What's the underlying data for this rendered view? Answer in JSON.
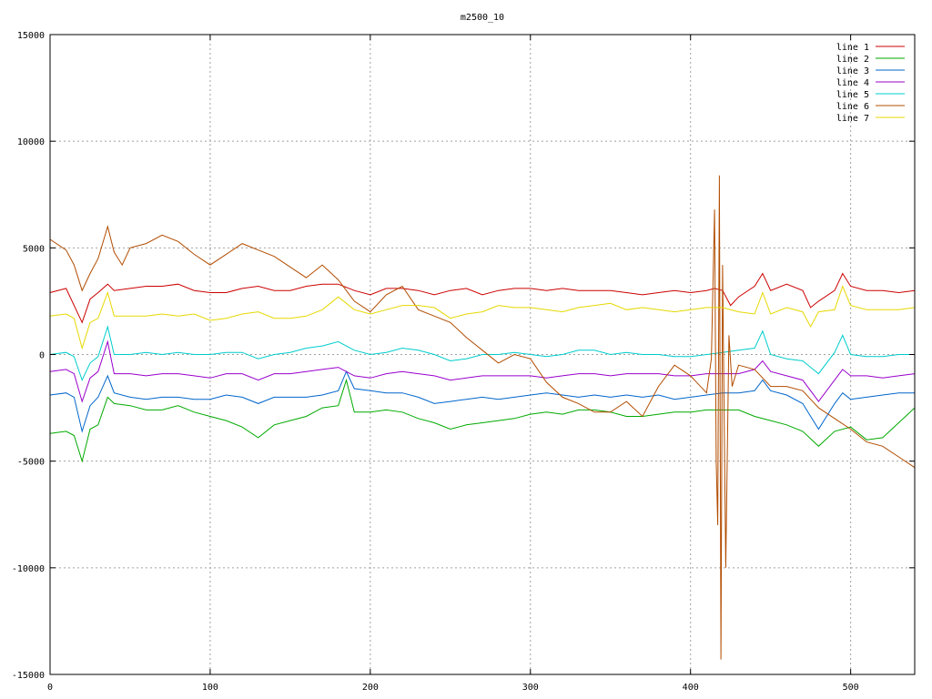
{
  "chart_data": {
    "type": "line",
    "title": "m2500_10",
    "xlabel": "",
    "ylabel": "",
    "xlim": [
      0,
      540
    ],
    "ylim": [
      -15000,
      15000
    ],
    "xticks": [
      0,
      100,
      200,
      300,
      400,
      500
    ],
    "yticks": [
      -15000,
      -10000,
      -5000,
      0,
      5000,
      10000,
      15000
    ],
    "grid": true,
    "legend_position": "top-right",
    "series": [
      {
        "name": "line 1",
        "color": "#cc0000",
        "x": [
          0,
          10,
          20,
          25,
          30,
          36,
          40,
          50,
          60,
          70,
          80,
          90,
          100,
          110,
          120,
          130,
          140,
          150,
          160,
          170,
          180,
          190,
          200,
          210,
          220,
          230,
          240,
          250,
          260,
          270,
          280,
          290,
          300,
          310,
          320,
          330,
          340,
          350,
          360,
          370,
          380,
          390,
          400,
          410,
          415,
          420,
          425,
          430,
          440,
          445,
          450,
          460,
          470,
          475,
          480,
          490,
          495,
          500,
          510,
          520,
          530,
          540
        ],
        "values": [
          2900,
          3100,
          1500,
          2600,
          2900,
          3300,
          3000,
          3100,
          3200,
          3200,
          3300,
          3000,
          2900,
          2900,
          3100,
          3200,
          3000,
          3000,
          3200,
          3300,
          3300,
          3000,
          2800,
          3100,
          3100,
          3000,
          2800,
          3000,
          3100,
          2800,
          3000,
          3100,
          3100,
          3000,
          3100,
          3000,
          3000,
          3000,
          2900,
          2800,
          2900,
          3000,
          2900,
          3000,
          3100,
          3000,
          2300,
          2700,
          3200,
          3800,
          3000,
          3300,
          3000,
          2200,
          2500,
          3000,
          3800,
          3200,
          3000,
          3000,
          2900,
          3000
        ]
      },
      {
        "name": "line 2",
        "color": "#00aa00",
        "x": [
          0,
          10,
          15,
          20,
          25,
          30,
          36,
          40,
          50,
          60,
          70,
          80,
          90,
          100,
          110,
          120,
          130,
          140,
          150,
          160,
          170,
          180,
          185,
          190,
          200,
          210,
          220,
          230,
          240,
          250,
          260,
          270,
          280,
          290,
          300,
          310,
          320,
          330,
          340,
          350,
          360,
          370,
          380,
          390,
          400,
          410,
          420,
          430,
          440,
          450,
          460,
          470,
          480,
          490,
          500,
          510,
          520,
          530,
          540
        ],
        "values": [
          -3700,
          -3600,
          -3800,
          -5000,
          -3500,
          -3300,
          -2000,
          -2300,
          -2400,
          -2600,
          -2600,
          -2400,
          -2700,
          -2900,
          -3100,
          -3400,
          -3900,
          -3300,
          -3100,
          -2900,
          -2500,
          -2400,
          -1200,
          -2700,
          -2700,
          -2600,
          -2700,
          -3000,
          -3200,
          -3500,
          -3300,
          -3200,
          -3100,
          -3000,
          -2800,
          -2700,
          -2800,
          -2600,
          -2600,
          -2700,
          -2900,
          -2900,
          -2800,
          -2700,
          -2700,
          -2600,
          -2600,
          -2600,
          -2900,
          -3100,
          -3300,
          -3600,
          -4300,
          -3600,
          -3400,
          -4000,
          -3900,
          -3200,
          -2500
        ]
      },
      {
        "name": "line 3",
        "color": "#0066cc",
        "x": [
          0,
          10,
          15,
          20,
          25,
          30,
          36,
          40,
          50,
          60,
          70,
          80,
          90,
          100,
          110,
          120,
          130,
          140,
          150,
          160,
          170,
          180,
          185,
          190,
          200,
          210,
          220,
          230,
          240,
          250,
          260,
          270,
          280,
          290,
          300,
          310,
          320,
          330,
          340,
          350,
          360,
          370,
          380,
          390,
          400,
          410,
          420,
          430,
          440,
          445,
          450,
          460,
          470,
          480,
          490,
          495,
          500,
          510,
          520,
          530,
          540
        ],
        "values": [
          -1900,
          -1800,
          -2000,
          -3600,
          -2400,
          -2000,
          -1000,
          -1800,
          -2000,
          -2100,
          -2000,
          -2000,
          -2100,
          -2100,
          -1900,
          -2000,
          -2300,
          -2000,
          -2000,
          -2000,
          -1900,
          -1700,
          -800,
          -1600,
          -1700,
          -1800,
          -1800,
          -2000,
          -2300,
          -2200,
          -2100,
          -2000,
          -2100,
          -2000,
          -1900,
          -1800,
          -1900,
          -2000,
          -1900,
          -2000,
          -1900,
          -2000,
          -1900,
          -2100,
          -2000,
          -1900,
          -1800,
          -1800,
          -1700,
          -1200,
          -1700,
          -1900,
          -2300,
          -3500,
          -2300,
          -1800,
          -2100,
          -2000,
          -1900,
          -1800,
          -1800
        ]
      },
      {
        "name": "line 4",
        "color": "#9900cc",
        "x": [
          0,
          10,
          15,
          20,
          25,
          30,
          36,
          40,
          50,
          60,
          70,
          80,
          90,
          100,
          110,
          120,
          130,
          140,
          150,
          160,
          170,
          180,
          190,
          200,
          210,
          220,
          230,
          240,
          250,
          260,
          270,
          280,
          290,
          300,
          310,
          320,
          330,
          340,
          350,
          360,
          370,
          380,
          390,
          400,
          410,
          420,
          430,
          440,
          445,
          450,
          460,
          470,
          480,
          490,
          495,
          500,
          510,
          520,
          530,
          540
        ],
        "values": [
          -800,
          -700,
          -900,
          -2200,
          -1100,
          -800,
          600,
          -900,
          -900,
          -1000,
          -900,
          -900,
          -1000,
          -1100,
          -900,
          -900,
          -1200,
          -900,
          -900,
          -800,
          -700,
          -600,
          -1000,
          -1100,
          -900,
          -800,
          -900,
          -1000,
          -1200,
          -1100,
          -1000,
          -1000,
          -1000,
          -1000,
          -1100,
          -1000,
          -900,
          -900,
          -1000,
          -900,
          -900,
          -900,
          -1000,
          -1000,
          -900,
          -900,
          -900,
          -700,
          -300,
          -800,
          -1000,
          -1200,
          -2200,
          -1200,
          -700,
          -1000,
          -1000,
          -1100,
          -1000,
          -900
        ]
      },
      {
        "name": "line 5",
        "color": "#00cccc",
        "x": [
          0,
          10,
          15,
          20,
          25,
          30,
          36,
          40,
          50,
          60,
          70,
          80,
          90,
          100,
          110,
          120,
          130,
          140,
          150,
          160,
          170,
          180,
          190,
          200,
          210,
          220,
          230,
          240,
          250,
          260,
          270,
          280,
          290,
          300,
          310,
          320,
          330,
          340,
          350,
          360,
          370,
          380,
          390,
          400,
          410,
          420,
          430,
          440,
          445,
          450,
          460,
          470,
          480,
          490,
          495,
          500,
          510,
          520,
          530,
          540
        ],
        "values": [
          0,
          100,
          -100,
          -1200,
          -400,
          -100,
          1300,
          0,
          0,
          100,
          0,
          100,
          0,
          0,
          100,
          100,
          -200,
          0,
          100,
          300,
          400,
          600,
          200,
          0,
          100,
          300,
          200,
          0,
          -300,
          -200,
          0,
          0,
          100,
          0,
          -100,
          0,
          200,
          200,
          0,
          100,
          0,
          0,
          -100,
          -100,
          0,
          100,
          200,
          300,
          1100,
          0,
          -200,
          -300,
          -900,
          100,
          900,
          0,
          -100,
          -100,
          0,
          0
        ]
      },
      {
        "name": "line 6",
        "color": "#b24c00",
        "x": [
          0,
          10,
          15,
          20,
          25,
          30,
          36,
          40,
          45,
          50,
          60,
          70,
          80,
          90,
          100,
          110,
          120,
          130,
          140,
          150,
          160,
          170,
          180,
          190,
          200,
          210,
          220,
          230,
          240,
          250,
          260,
          270,
          280,
          290,
          300,
          310,
          320,
          330,
          340,
          350,
          360,
          370,
          380,
          390,
          400,
          410,
          413,
          415,
          416,
          417,
          418,
          419,
          420,
          422,
          424,
          426,
          430,
          440,
          450,
          460,
          470,
          480,
          490,
          500,
          510,
          520,
          530,
          540
        ],
        "values": [
          5400,
          4900,
          4200,
          3000,
          3800,
          4500,
          6000,
          4800,
          4200,
          5000,
          5200,
          5600,
          5300,
          4700,
          4200,
          4700,
          5200,
          4900,
          4600,
          4100,
          3600,
          4200,
          3500,
          2500,
          2000,
          2800,
          3200,
          2100,
          1800,
          1500,
          800,
          200,
          -400,
          0,
          -200,
          -1300,
          -2000,
          -2300,
          -2700,
          -2700,
          -2200,
          -2900,
          -1500,
          -500,
          -1000,
          -1800,
          -200,
          6800,
          -5000,
          -8000,
          8400,
          -14300,
          4200,
          -10000,
          900,
          -1500,
          -500,
          -700,
          -1500,
          -1500,
          -1700,
          -2500,
          -3000,
          -3500,
          -4100,
          -4300,
          -4800,
          -5300
        ]
      },
      {
        "name": "line 7",
        "color": "#e6d800",
        "x": [
          0,
          10,
          15,
          20,
          25,
          30,
          36,
          40,
          50,
          60,
          70,
          80,
          90,
          100,
          110,
          120,
          130,
          140,
          150,
          160,
          170,
          180,
          190,
          200,
          210,
          220,
          230,
          240,
          250,
          260,
          270,
          280,
          290,
          300,
          310,
          320,
          330,
          340,
          350,
          360,
          370,
          380,
          390,
          400,
          410,
          420,
          430,
          440,
          445,
          450,
          460,
          470,
          475,
          480,
          490,
          495,
          500,
          510,
          520,
          530,
          540
        ],
        "values": [
          1800,
          1900,
          1700,
          300,
          1500,
          1700,
          2900,
          1800,
          1800,
          1800,
          1900,
          1800,
          1900,
          1600,
          1700,
          1900,
          2000,
          1700,
          1700,
          1800,
          2100,
          2700,
          2100,
          1900,
          2100,
          2300,
          2300,
          2200,
          1700,
          1900,
          2000,
          2300,
          2200,
          2200,
          2100,
          2000,
          2200,
          2300,
          2400,
          2100,
          2200,
          2100,
          2000,
          2100,
          2200,
          2200,
          2000,
          1900,
          2900,
          1900,
          2200,
          2000,
          1300,
          2000,
          2100,
          3200,
          2300,
          2100,
          2100,
          2100,
          2200
        ]
      }
    ]
  }
}
